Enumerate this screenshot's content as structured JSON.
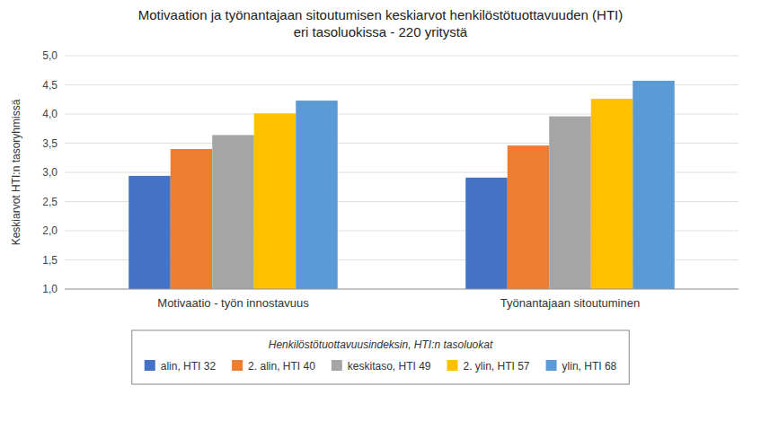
{
  "chart_data": {
    "type": "bar",
    "title": "Motivaation ja työnantajaan sitoutumisen keskiarvot henkilöstötuottavuuden (HTI)",
    "subtitle": "eri tasoluokissa - 220 yritystä",
    "ylabel": "Keskiarvot HTI:n tasoryhmissä",
    "categories": [
      "Motivaatio - työn innostavuus",
      "Työnantajaan sitoutuminen"
    ],
    "series": [
      {
        "name": "alin, HTI 32",
        "color": "#4472C4",
        "values": [
          2.94,
          2.91
        ]
      },
      {
        "name": "2. alin, HTI 40",
        "color": "#ED7D31",
        "values": [
          3.4,
          3.46
        ]
      },
      {
        "name": "keskitaso, HTI 49",
        "color": "#A5A5A5",
        "values": [
          3.64,
          3.96
        ]
      },
      {
        "name": "2. ylin, HTI 57",
        "color": "#FFC000",
        "values": [
          4.01,
          4.26
        ]
      },
      {
        "name": "ylin, HTI 68",
        "color": "#5B9BD5",
        "values": [
          4.23,
          4.57
        ]
      }
    ],
    "legend_title": "Henkilöstötuottavuusindeksin, HTI:n tasoluokat",
    "legend": "bottom",
    "ylim": [
      1.0,
      5.0
    ],
    "yticks": [
      {
        "value": 1.0,
        "label": "1,0"
      },
      {
        "value": 1.5,
        "label": "1,5"
      },
      {
        "value": 2.0,
        "label": "2,0"
      },
      {
        "value": 2.5,
        "label": "2,5"
      },
      {
        "value": 3.0,
        "label": "3,0"
      },
      {
        "value": 3.5,
        "label": "3,5"
      },
      {
        "value": 4.0,
        "label": "4,0"
      },
      {
        "value": 4.5,
        "label": "4,5"
      },
      {
        "value": 5.0,
        "label": "5,0"
      }
    ],
    "grid": true
  }
}
